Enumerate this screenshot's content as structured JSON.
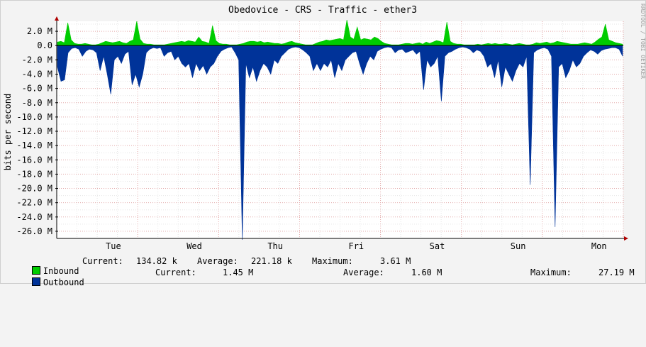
{
  "chart_data": {
    "type": "area",
    "title": "Obedovice - CRS - Traffic - ether3",
    "ylabel": "bits per second",
    "watermark": "RRDTOOL / TOBI OETIKER",
    "ylim": [
      -27000000,
      3400000
    ],
    "y_ticks": [
      {
        "value": 2000000,
        "label": "2.0 M"
      },
      {
        "value": 0,
        "label": "0.0"
      },
      {
        "value": -2000000,
        "label": "-2.0 M"
      },
      {
        "value": -4000000,
        "label": "-4.0 M"
      },
      {
        "value": -6000000,
        "label": "-6.0 M"
      },
      {
        "value": -8000000,
        "label": "-8.0 M"
      },
      {
        "value": -10000000,
        "label": "-10.0 M"
      },
      {
        "value": -12000000,
        "label": "-12.0 M"
      },
      {
        "value": -14000000,
        "label": "-14.0 M"
      },
      {
        "value": -16000000,
        "label": "-16.0 M"
      },
      {
        "value": -18000000,
        "label": "-18.0 M"
      },
      {
        "value": -20000000,
        "label": "-20.0 M"
      },
      {
        "value": -22000000,
        "label": "-22.0 M"
      },
      {
        "value": -24000000,
        "label": "-24.0 M"
      },
      {
        "value": -26000000,
        "label": "-26.0 M"
      }
    ],
    "x_range_days": [
      0,
      7
    ],
    "x_ticks": [
      {
        "day": 0.7,
        "label": "Tue"
      },
      {
        "day": 1.7,
        "label": "Wed"
      },
      {
        "day": 2.7,
        "label": "Thu"
      },
      {
        "day": 3.7,
        "label": "Fri"
      },
      {
        "day": 4.7,
        "label": "Sat"
      },
      {
        "day": 5.7,
        "label": "Sun"
      },
      {
        "day": 6.7,
        "label": "Mon"
      }
    ],
    "grid": true,
    "series": [
      {
        "name": "Inbound",
        "color": "#00cc00",
        "values": [
          0.5,
          0.6,
          0.4,
          3.2,
          0.8,
          0.3,
          0.2,
          0.2,
          0.3,
          0.2,
          0.1,
          0.1,
          0.2,
          0.4,
          0.6,
          0.5,
          0.4,
          0.5,
          0.6,
          0.4,
          0.3,
          0.6,
          0.8,
          3.4,
          0.9,
          0.3,
          0.2,
          0.2,
          0.1,
          0.1,
          0.1,
          0.1,
          0.2,
          0.3,
          0.4,
          0.5,
          0.6,
          0.5,
          0.7,
          0.6,
          0.5,
          1.2,
          0.6,
          0.5,
          0.3,
          2.8,
          0.7,
          0.3,
          0.2,
          0.2,
          0.1,
          0.1,
          0.1,
          0.2,
          0.3,
          0.5,
          0.6,
          0.6,
          0.5,
          0.6,
          0.4,
          0.5,
          0.4,
          0.3,
          0.3,
          0.2,
          0.3,
          0.5,
          0.6,
          0.4,
          0.3,
          0.2,
          0.1,
          0.1,
          0.1,
          0.3,
          0.5,
          0.6,
          0.8,
          0.7,
          0.8,
          0.9,
          1.0,
          0.8,
          3.6,
          1.2,
          0.9,
          2.6,
          0.8,
          1.0,
          0.9,
          0.8,
          1.2,
          1.0,
          0.6,
          0.3,
          0.2,
          0.1,
          0.1,
          0.1,
          0.2,
          0.3,
          0.3,
          0.2,
          0.3,
          0.4,
          0.2,
          0.5,
          0.3,
          0.5,
          0.7,
          0.6,
          0.4,
          3.3,
          0.6,
          0.3,
          0.2,
          0.2,
          0.1,
          0.1,
          0.1,
          0.1,
          0.2,
          0.1,
          0.2,
          0.3,
          0.2,
          0.3,
          0.2,
          0.2,
          0.3,
          0.2,
          0.1,
          0.2,
          0.3,
          0.2,
          0.1,
          0.1,
          0.2,
          0.4,
          0.3,
          0.4,
          0.5,
          0.3,
          0.4,
          0.6,
          0.5,
          0.4,
          0.3,
          0.2,
          0.2,
          0.2,
          0.3,
          0.4,
          0.3,
          0.2,
          0.5,
          0.9,
          1.2,
          3.0,
          0.8,
          0.6,
          0.4,
          0.3,
          0.2
        ]
      },
      {
        "name": "Outbound",
        "color": "#003399",
        "values": [
          -3.0,
          -5.0,
          -4.8,
          -1.0,
          -0.4,
          -0.3,
          -0.5,
          -1.5,
          -0.8,
          -0.5,
          -0.6,
          -1.0,
          -3.5,
          -1.5,
          -4.0,
          -6.8,
          -2.0,
          -1.5,
          -2.5,
          -1.2,
          -0.8,
          -5.5,
          -4.0,
          -5.8,
          -4.0,
          -1.0,
          -0.5,
          -0.3,
          -0.4,
          -0.3,
          -1.5,
          -1.0,
          -0.8,
          -2.0,
          -1.5,
          -2.5,
          -3.0,
          -2.5,
          -4.5,
          -2.5,
          -3.5,
          -2.8,
          -4.0,
          -3.0,
          -2.5,
          -1.5,
          -0.8,
          -0.5,
          -0.3,
          -0.2,
          -1.0,
          -2.0,
          -27.2,
          -2.5,
          -4.5,
          -3.0,
          -5.0,
          -3.5,
          -2.5,
          -3.0,
          -4.0,
          -2.0,
          -2.5,
          -1.5,
          -1.0,
          -0.5,
          -0.3,
          -0.2,
          -0.3,
          -0.6,
          -1.0,
          -1.5,
          -3.5,
          -2.5,
          -3.5,
          -2.5,
          -3.0,
          -2.0,
          -4.5,
          -2.5,
          -3.5,
          -2.0,
          -1.5,
          -1.0,
          -0.8,
          -2.5,
          -4.0,
          -2.5,
          -1.5,
          -2.0,
          -0.8,
          -0.5,
          -0.3,
          -0.2,
          -0.3,
          -1.0,
          -0.6,
          -0.5,
          -1.0,
          -0.8,
          -0.6,
          -1.2,
          -0.8,
          -6.2,
          -2.0,
          -3.0,
          -2.5,
          -1.5,
          -7.8,
          -1.5,
          -1.0,
          -0.8,
          -0.5,
          -0.3,
          -0.2,
          -0.3,
          -0.5,
          -1.0,
          -0.6,
          -0.8,
          -1.5,
          -3.0,
          -2.5,
          -4.5,
          -2.0,
          -5.8,
          -3.0,
          -4.0,
          -5.0,
          -3.5,
          -2.5,
          -3.0,
          -1.5,
          -19.5,
          -1.0,
          -0.6,
          -0.4,
          -0.3,
          -0.5,
          -1.5,
          -25.4,
          -3.0,
          -2.5,
          -4.5,
          -3.5,
          -2.0,
          -3.0,
          -2.5,
          -1.5,
          -1.0,
          -0.6,
          -0.8,
          -1.2,
          -0.7,
          -0.5,
          -0.4,
          -0.3,
          -0.3,
          -0.5,
          -1.5
        ]
      }
    ]
  },
  "legend": [
    {
      "name": "Inbound",
      "color": "#00cc00",
      "current_label": "Current:",
      "current": "134.82 k",
      "average_label": "Average:",
      "average": "221.18 k",
      "maximum_label": "Maximum:",
      "maximum": "3.61 M"
    },
    {
      "name": "Outbound",
      "color": "#003399",
      "current_label": "Current:",
      "current": "1.45 M",
      "average_label": "Average:",
      "average": "1.60 M",
      "maximum_label": "Maximum:",
      "maximum": "27.19 M"
    }
  ]
}
